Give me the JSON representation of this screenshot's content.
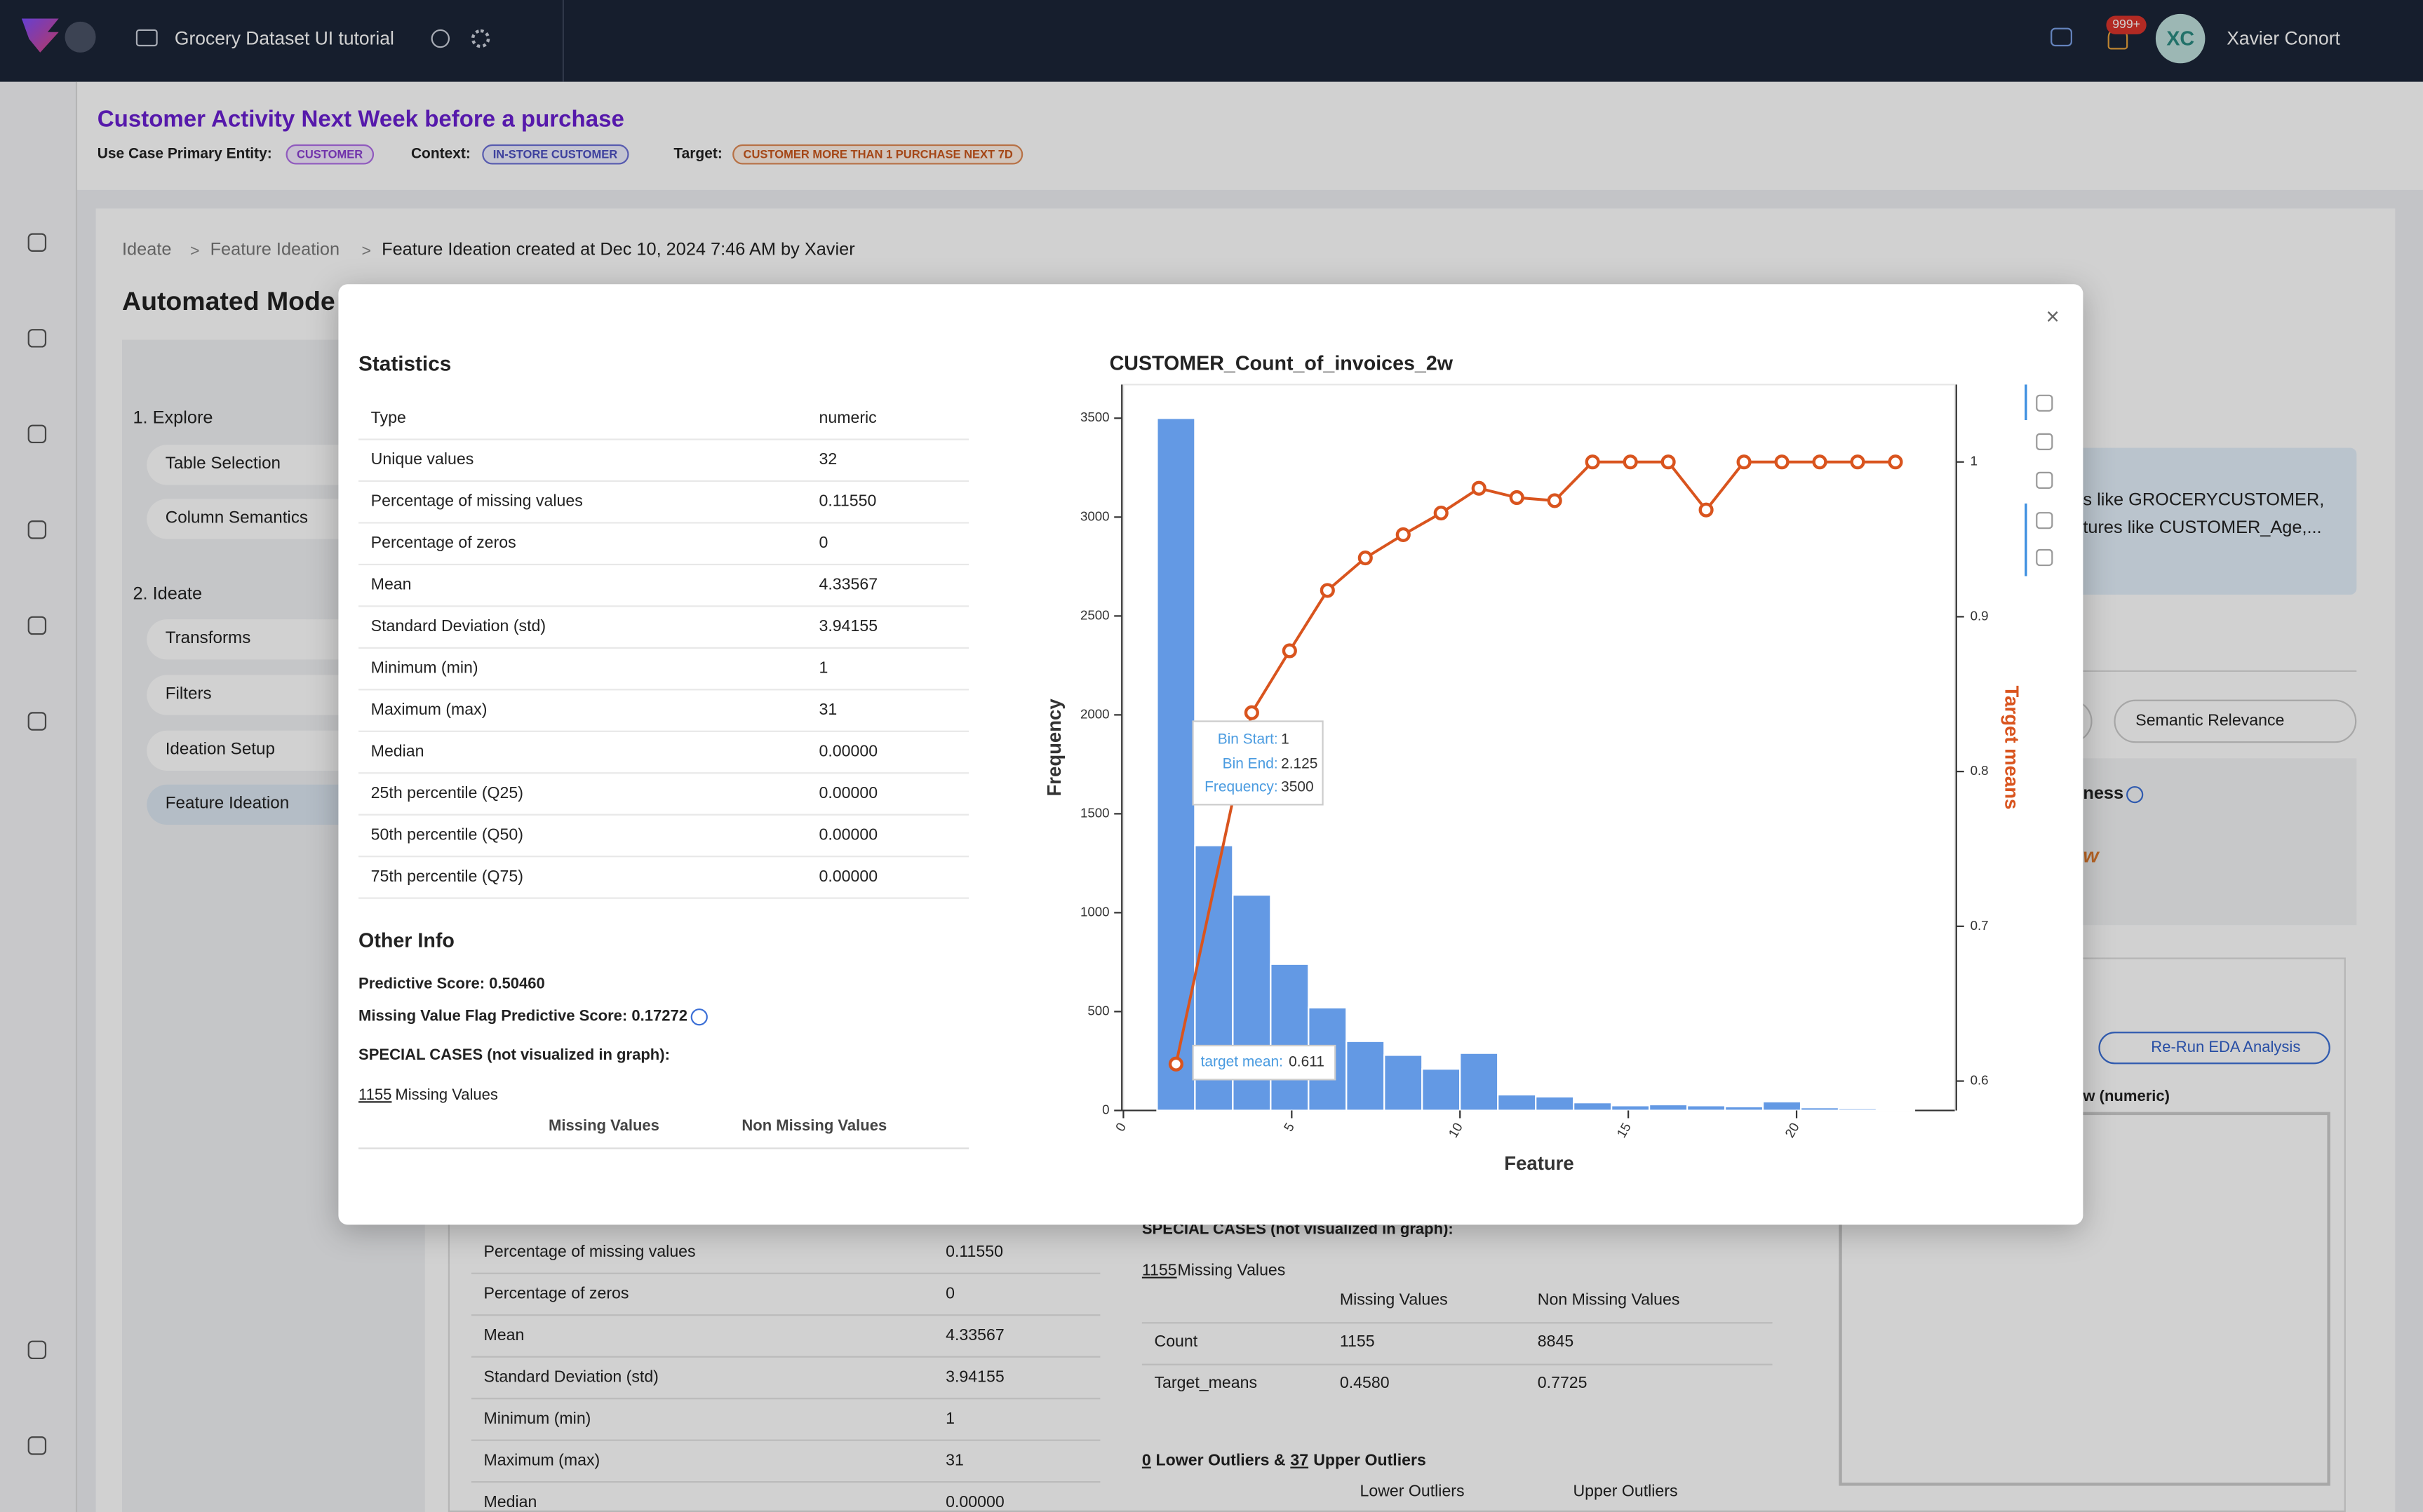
{
  "top_bar": {
    "project": "Grocery Dataset UI tutorial",
    "notifications": "999+",
    "avatar": "XC",
    "user": "Xavier Conort"
  },
  "header": {
    "title": "Customer Activity Next Week before a purchase",
    "entity_label": "Use Case Primary Entity:",
    "entity": "CUSTOMER",
    "context_label": "Context:",
    "context": "IN-STORE CUSTOMER",
    "target_label": "Target:",
    "target": "CUSTOMER MORE THAN 1 PURCHASE NEXT 7D"
  },
  "breadcrumb": [
    "Ideate",
    "Feature Ideation",
    "Feature Ideation created at Dec 10, 2024 7:46 AM by Xavier"
  ],
  "page_title": "Automated Mode",
  "steps": [
    {
      "title": "1. Explore",
      "items": [
        "Table Selection",
        "Column Semantics"
      ]
    },
    {
      "title": "2. Ideate",
      "items": [
        "Transforms",
        "Filters",
        "Ideation Setup",
        "Feature Ideation"
      ]
    }
  ],
  "background": {
    "info_lines": [
      "s like GROCERYCUSTOMER,",
      "tures like CUSTOMER_Age,..."
    ],
    "sort": "Semantic Relevance",
    "column_fragment": "ness",
    "orange_fragment": "w",
    "rerun": "Re-Run EDA Analysis",
    "chart_fragment": "w (numeric)",
    "statistics": [
      [
        "Percentage of missing values",
        "0.11550"
      ],
      [
        "Percentage of zeros",
        "0"
      ],
      [
        "Mean",
        "4.33567"
      ],
      [
        "Standard Deviation (std)",
        "3.94155"
      ],
      [
        "Minimum (min)",
        "1"
      ],
      [
        "Maximum (max)",
        "31"
      ],
      [
        "Median",
        "0.00000"
      ]
    ],
    "special_cases": "SPECIAL CASES (not visualized in graph):",
    "missing_count": "1155",
    "missing_text": " Missing Values",
    "columns": [
      "Missing Values",
      "Non Missing Values"
    ],
    "rows": [
      [
        "Count",
        "1155",
        "8845"
      ],
      [
        "Target_means",
        "0.4580",
        "0.7725"
      ]
    ],
    "outliers": [
      "0",
      " Lower Outliers & ",
      "37",
      " Upper Outliers"
    ],
    "outlier_columns": [
      "Lower Outliers",
      "Upper Outliers"
    ]
  },
  "modal": {
    "statistics_title": "Statistics",
    "statistics": [
      [
        "Type",
        "numeric"
      ],
      [
        "Unique values",
        "32"
      ],
      [
        "Percentage of missing values",
        "0.11550"
      ],
      [
        "Percentage of zeros",
        "0"
      ],
      [
        "Mean",
        "4.33567"
      ],
      [
        "Standard Deviation (std)",
        "3.94155"
      ],
      [
        "Minimum (min)",
        "1"
      ],
      [
        "Maximum (max)",
        "31"
      ],
      [
        "Median",
        "0.00000"
      ],
      [
        "25th percentile (Q25)",
        "0.00000"
      ],
      [
        "50th percentile (Q50)",
        "0.00000"
      ],
      [
        "75th percentile (Q75)",
        "0.00000"
      ]
    ],
    "other_info_title": "Other Info",
    "predictive_score": "Predictive Score: 0.50460",
    "missing_flag_score": "Missing Value Flag Predictive Score: 0.17272",
    "special_cases": "SPECIAL CASES (not visualized in graph):",
    "missing_count": "1155",
    "missing_text": " Missing Values",
    "columns": [
      "Missing Values",
      "Non Missing Values"
    ]
  },
  "chart_data": {
    "type": "histogram",
    "title": "CUSTOMER_Count_of_invoices_2w",
    "xlabel": "Feature",
    "ylabel": "Frequency",
    "y2label": "Target means",
    "bins": [
      1,
      2.125,
      3.25,
      4.375,
      5.5,
      6.625,
      7.75,
      8.875,
      10,
      11.125,
      12.25,
      13.375,
      14.5,
      15.625,
      16.75,
      17.875,
      19,
      20.125,
      21.25,
      22.375,
      23.5
    ],
    "values": [
      3500,
      1340,
      1090,
      740,
      520,
      350,
      280,
      210,
      290,
      80,
      70,
      40,
      25,
      30,
      25,
      20,
      45,
      15,
      10,
      5
    ],
    "color": "#6399e4",
    "xlim": [
      0,
      24.7
    ],
    "xticks": [
      0,
      5,
      10,
      15,
      20
    ],
    "ylim": [
      0,
      3670
    ],
    "yticks": [
      0,
      500,
      1000,
      1500,
      2000,
      2500,
      3000,
      3500
    ],
    "y2lim": [
      0.581,
      1.05
    ],
    "y2ticks": [
      0.6,
      0.7,
      0.8,
      0.9,
      1
    ],
    "series": [
      {
        "type": "line",
        "axis": "y2",
        "color": "#d9541e",
        "x": [
          1.5625,
          3.8125,
          4.9375,
          6.0625,
          7.1875,
          8.3125,
          9.4375,
          10.5625,
          11.6875,
          12.8125,
          13.9375,
          15.0625,
          16.1875,
          17.3125,
          18.4375,
          19.5625,
          20.6875,
          21.8125,
          22.9375
        ],
        "values": [
          0.611,
          0.838,
          0.878,
          0.917,
          0.938,
          0.953,
          0.967,
          0.983,
          0.977,
          0.975,
          1,
          1,
          1,
          0.969,
          1,
          1,
          1,
          1,
          1
        ]
      }
    ],
    "tooltip": {
      "bin_start_label": "Bin Start:",
      "bin_end_label": "Bin End:",
      "frequency_label": "Frequency:",
      "target_mean_label": "target mean:"
    }
  }
}
